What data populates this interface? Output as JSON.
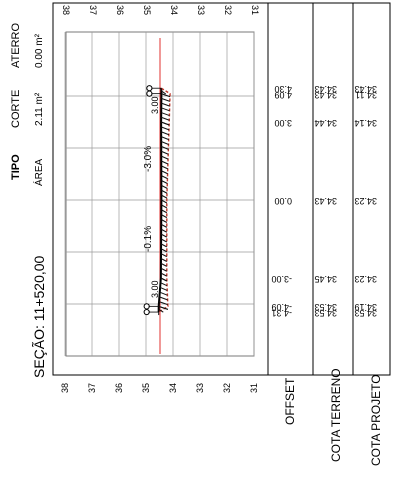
{
  "header": {
    "tipo_label": "TIPO",
    "area_label": "ÁREA",
    "corte_label": "CORTE",
    "corte_value": "2.11 m²",
    "aterro_label": "ATERRO",
    "aterro_value": "0.00 m²"
  },
  "section": {
    "title": "SEÇÃO: 11+520,00"
  },
  "axis": {
    "elevation_ticks": [
      "38",
      "37",
      "36",
      "35",
      "34",
      "33",
      "32",
      "31"
    ]
  },
  "annotations": {
    "slope_upper": "-3.0%",
    "slope_lower": "-0.1%",
    "ref_upper": "3.00",
    "ref_lower": "3.00"
  },
  "table": {
    "columns": [
      "OFFSET",
      "COTA TERRENO",
      "COTA PROJETO"
    ],
    "rows": [
      {
        "offset": "4.30",
        "terreno": "34.43",
        "projeto": "34.43"
      },
      {
        "offset": "4.09",
        "terreno": "34.43",
        "projeto": "34.11"
      },
      {
        "offset": "3.00",
        "terreno": "34.44",
        "projeto": "34.14"
      },
      {
        "offset": "0.00",
        "terreno": "34.43",
        "projeto": "34.23"
      },
      {
        "offset": "-3.00",
        "terreno": "34.45",
        "projeto": "34.23"
      },
      {
        "offset": "-4.09",
        "terreno": "34.53",
        "projeto": "34.19"
      },
      {
        "offset": "-4.31",
        "terreno": "34.53",
        "projeto": "34.53"
      }
    ]
  },
  "colors": {
    "grid": "#9a9a9a",
    "centerline": "#e0302f",
    "terrain": "#000000",
    "project": "#c0392b"
  }
}
